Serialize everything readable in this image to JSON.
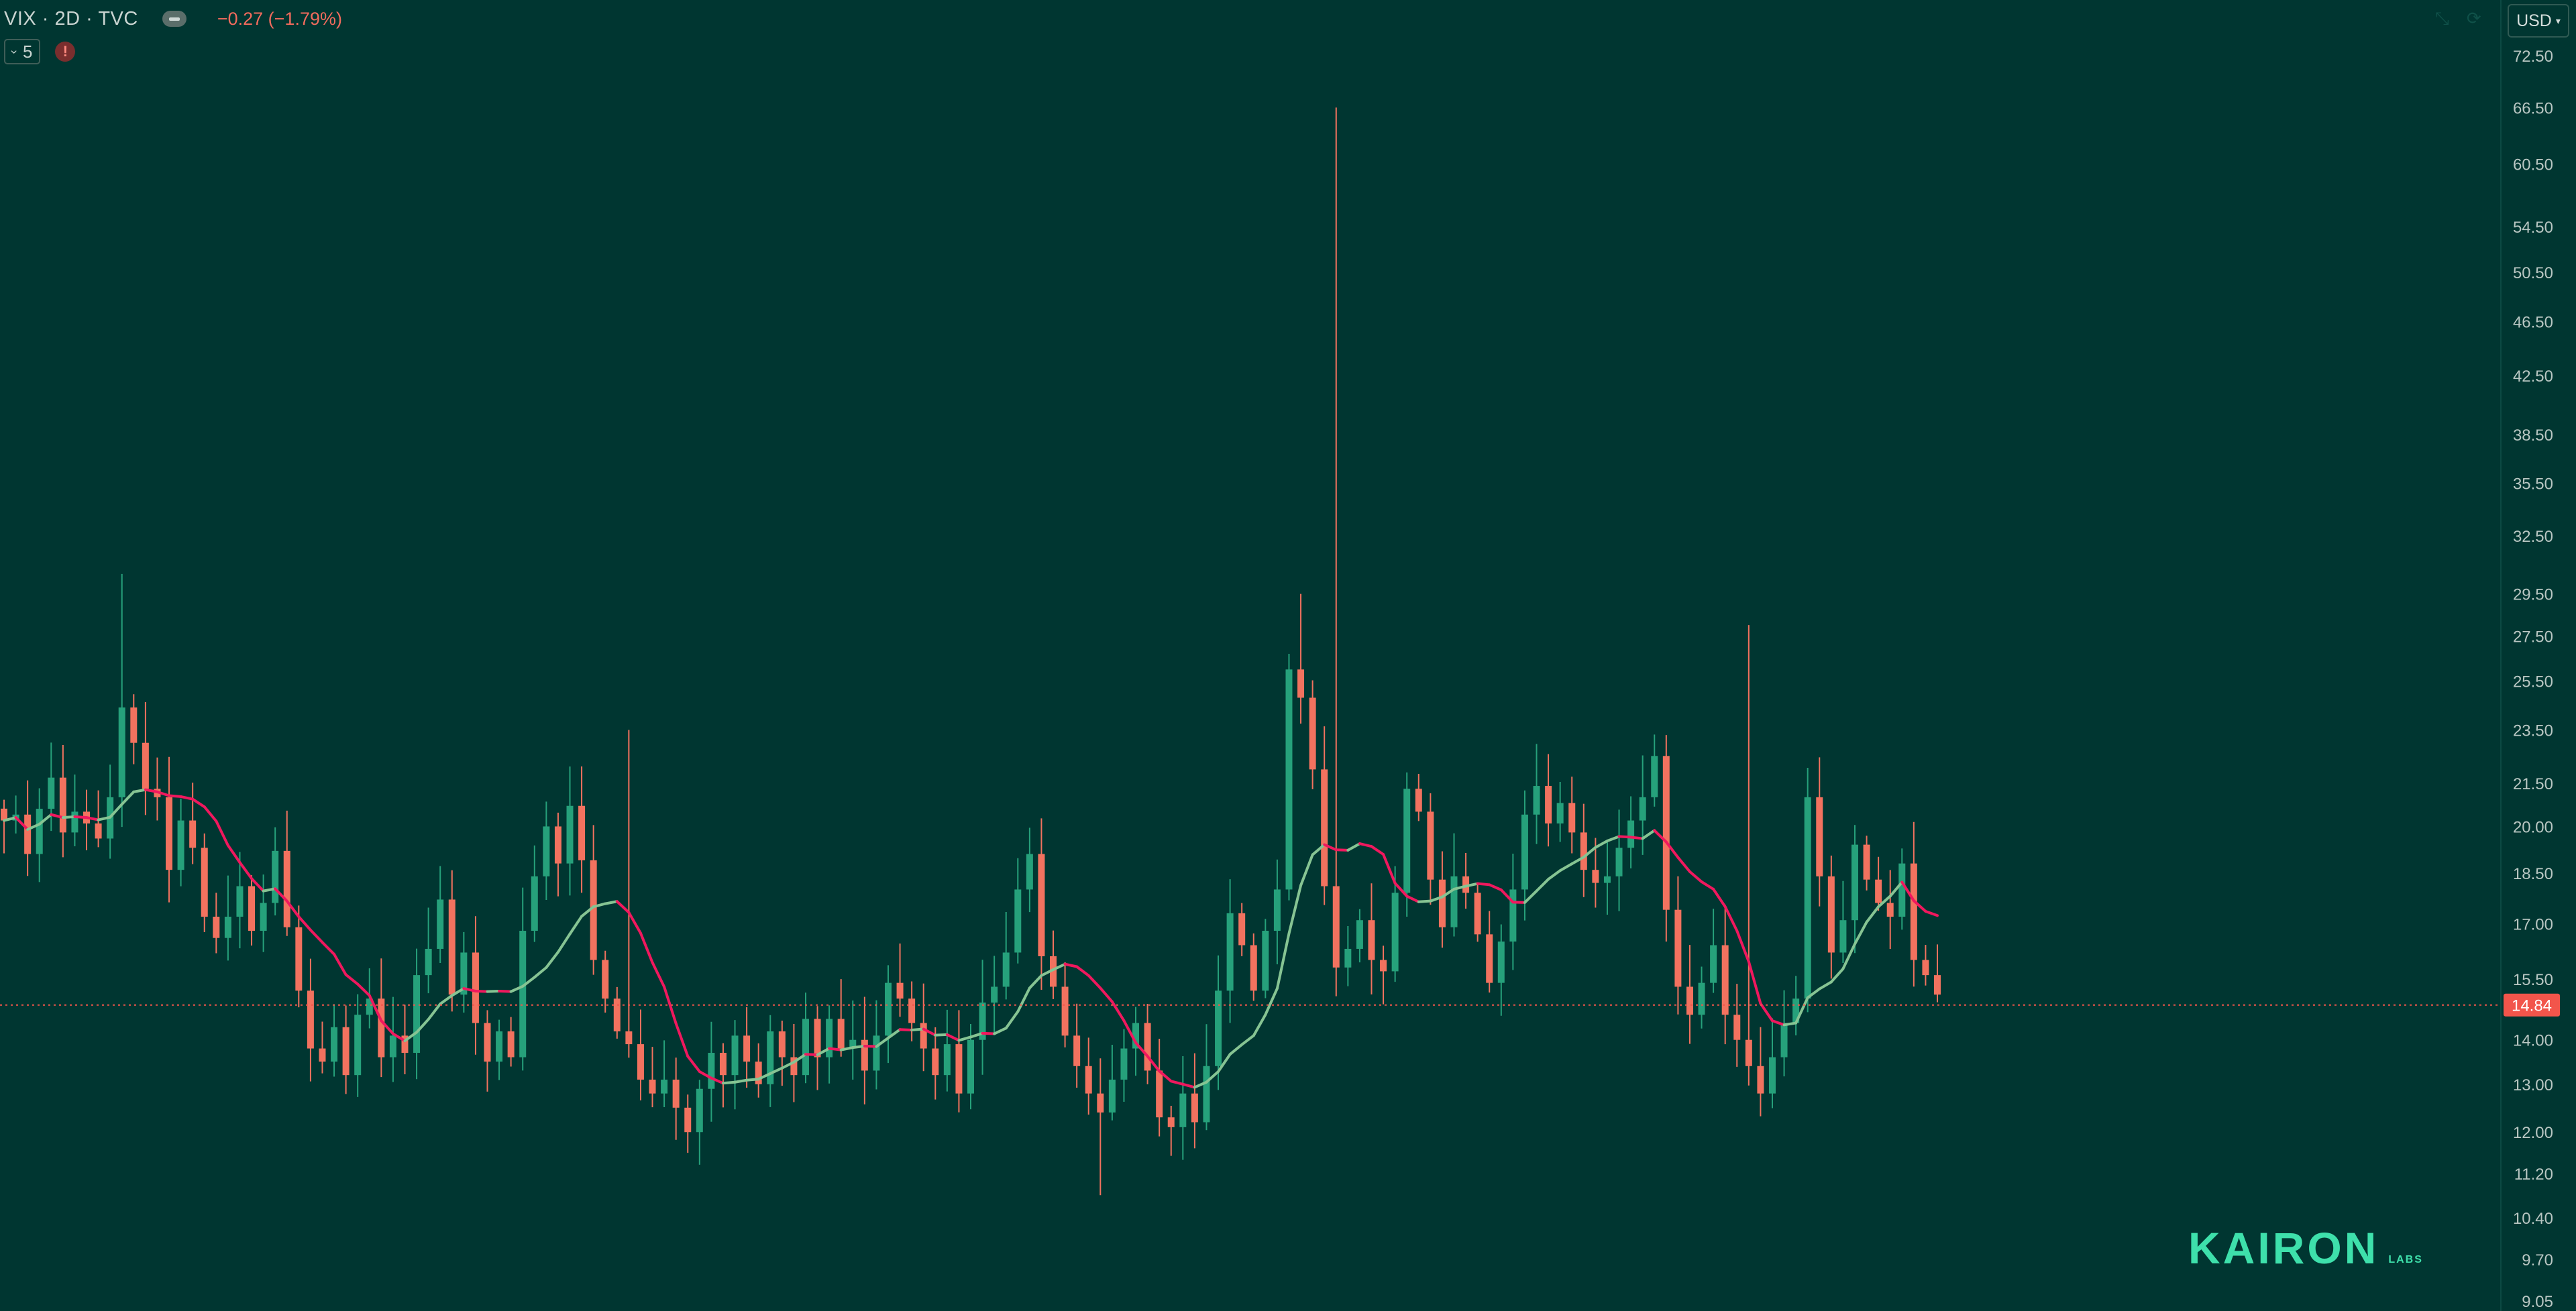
{
  "header": {
    "symbol": "VIX · 2D · TVC",
    "change": "−0.27 (−1.79%)",
    "indicator_count": "5",
    "currency": "USD",
    "icons": [
      "eye-icon",
      "chevron-down-icon",
      "warning-icon",
      "collapse-icon",
      "sync-icon"
    ]
  },
  "logo": {
    "main": "KAIRON",
    "sub": "LABS"
  },
  "colors": {
    "background": "#003631",
    "up": "#26a17b",
    "down": "#f2725f",
    "ma_above": "#f0185e",
    "ma_below": "#86c493",
    "price_label": "#f2554b"
  },
  "chart_data": {
    "type": "candlestick",
    "y_axis": {
      "scale": "log",
      "range": [
        9.05,
        78
      ],
      "ticks": [
        72.5,
        66.5,
        60.5,
        54.5,
        50.5,
        46.5,
        42.5,
        38.5,
        35.5,
        32.5,
        29.5,
        27.5,
        25.5,
        23.5,
        21.5,
        20.0,
        18.5,
        17.0,
        15.5,
        14.0,
        13.0,
        12.0,
        11.2,
        10.4,
        9.7,
        9.05
      ],
      "tick_labels": [
        "72.50",
        "66.50",
        "60.50",
        "54.50",
        "50.50",
        "46.50",
        "42.50",
        "38.50",
        "35.50",
        "32.50",
        "29.50",
        "27.50",
        "25.50",
        "23.50",
        "21.50",
        "20.00",
        "18.50",
        "17.00",
        "15.50",
        "14.00",
        "13.00",
        "12.00",
        "11.20",
        "10.40",
        "9.70",
        "9.05"
      ]
    },
    "last_price": 14.84,
    "last_price_label": "14.84",
    "grid": false,
    "closes": [
      20.2,
      20.4,
      19.1,
      20.6,
      21.7,
      19.8,
      20.5,
      20.1,
      19.6,
      21.0,
      24.4,
      23.0,
      21.3,
      21.0,
      18.6,
      20.2,
      19.3,
      17.2,
      16.6,
      17.2,
      18.1,
      16.8,
      17.6,
      19.2,
      16.9,
      15.2,
      13.8,
      13.5,
      14.3,
      13.2,
      14.6,
      15.0,
      13.6,
      14.1,
      13.7,
      15.6,
      16.3,
      17.7,
      15.1,
      16.2,
      14.4,
      13.5,
      14.2,
      13.6,
      16.8,
      18.4,
      20.0,
      18.8,
      20.7,
      18.9,
      16.0,
      15.0,
      14.2,
      13.9,
      13.1,
      12.8,
      13.1,
      12.5,
      12.0,
      12.9,
      13.7,
      13.2,
      14.1,
      13.5,
      13.0,
      14.2,
      13.6,
      13.2,
      14.5,
      13.6,
      14.5,
      13.8,
      14.0,
      13.3,
      14.1,
      15.4,
      15.0,
      14.4,
      13.8,
      13.2,
      13.9,
      12.8,
      14.0,
      14.9,
      15.3,
      16.2,
      18.0,
      19.1,
      16.1,
      15.3,
      14.1,
      13.4,
      12.8,
      12.4,
      13.1,
      13.8,
      14.4,
      13.3,
      12.3,
      12.1,
      12.8,
      12.2,
      13.4,
      15.2,
      17.3,
      16.4,
      15.2,
      16.8,
      18.0,
      26.0,
      24.8,
      22.0,
      18.1,
      15.8,
      16.3,
      17.1,
      16.0,
      15.7,
      17.9,
      21.3,
      20.5,
      18.3,
      16.9,
      18.4,
      17.9,
      16.7,
      15.4,
      16.5,
      18.0,
      20.4,
      21.4,
      20.1,
      20.8,
      19.8,
      18.6,
      18.2,
      18.4,
      19.3,
      20.2,
      21.0,
      22.5,
      17.4,
      15.3,
      14.6,
      15.4,
      16.4,
      14.6,
      14.0,
      13.4,
      12.8,
      13.6,
      14.4,
      15.0,
      21.0,
      18.4,
      16.2,
      17.1,
      19.4,
      18.3,
      17.6,
      17.2,
      18.8,
      16.0,
      15.6,
      15.1
    ]
  }
}
